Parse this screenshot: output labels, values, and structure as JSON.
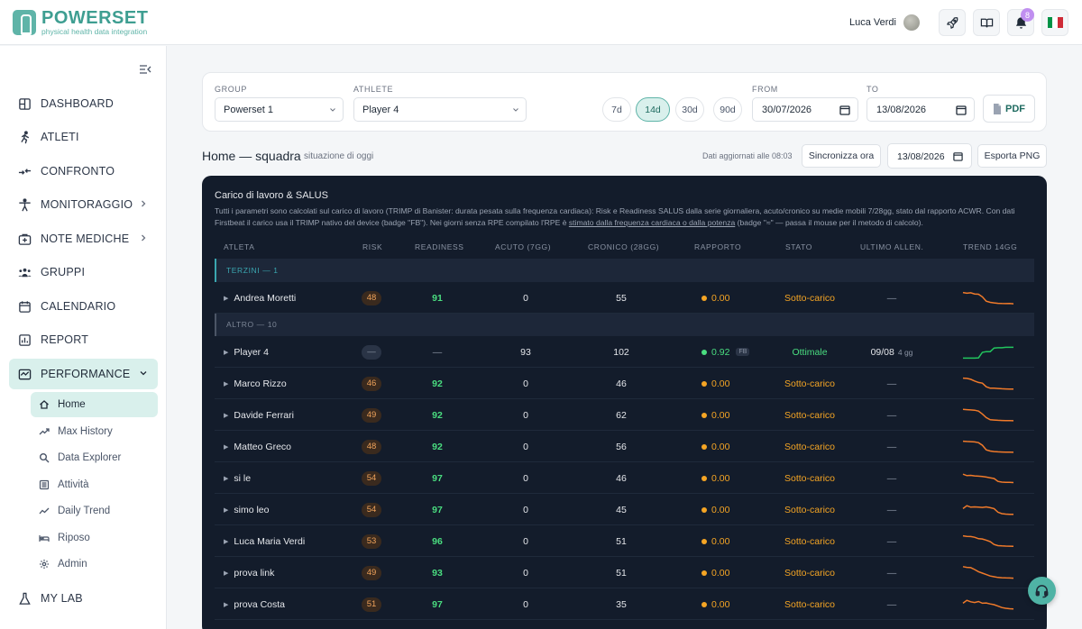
{
  "brand": {
    "name": "POWERSET",
    "tagline": "physical health data integration"
  },
  "header": {
    "user_name": "Luca Verdi",
    "notifications": "8"
  },
  "sidebar": {
    "items": [
      {
        "label": "DASHBOARD"
      },
      {
        "label": "ATLETI"
      },
      {
        "label": "CONFRONTO"
      },
      {
        "label": "MONITORAGGIO"
      },
      {
        "label": "NOTE MEDICHE"
      },
      {
        "label": "GRUPPI"
      },
      {
        "label": "CALENDARIO"
      },
      {
        "label": "REPORT"
      },
      {
        "label": "PERFORMANCE"
      },
      {
        "label": "MY LAB"
      }
    ],
    "sub_items": [
      {
        "label": "Home"
      },
      {
        "label": "Max History"
      },
      {
        "label": "Data Explorer"
      },
      {
        "label": "Attività"
      },
      {
        "label": "Daily Trend"
      },
      {
        "label": "Riposo"
      },
      {
        "label": "Admin"
      }
    ]
  },
  "filters": {
    "group_label": "GROUP",
    "group_value": "Powerset 1",
    "athlete_label": "ATHLETE",
    "athlete_value": "Player 4",
    "ranges": [
      "7d",
      "14d",
      "30d",
      "90d"
    ],
    "active_range": "14d",
    "from_label": "FROM",
    "from_value": "30/07/2026",
    "to_label": "TO",
    "to_value": "13/08/2026",
    "pdf_label": "PDF"
  },
  "title_row": {
    "title": "Home — squadra",
    "subtitle": "situazione di oggi",
    "updated": "Dati aggiornati alle 08:03",
    "sync_label": "Sincronizza ora",
    "date_value": "13/08/2026",
    "export_label": "Esporta PNG"
  },
  "panel": {
    "title": "Carico di lavoro & SALUS",
    "desc_1": "Tutti i parametri sono calcolati sul carico di lavoro (TRIMP di Banister: durata pesata sulla frequenza cardiaca): Risk e Readiness SALUS dalla serie giornaliera, acuto/cronico su medie mobili 7/28gg, stato dal rapporto ACWR.",
    "desc_2": "Con dati Firstbeat il carico usa il TRIMP nativo del device (badge \"FB\"). Nei giorni senza RPE compilato l'RPE è ",
    "desc_link": "stimato dalla frequenza cardiaca o dalla potenza",
    "desc_3": " (badge \"≈\" — passa il mouse per il metodo di calcolo).",
    "columns": [
      "ATLETA",
      "RISK",
      "READINESS",
      "ACUTO (7GG)",
      "CRONICO (28GG)",
      "RAPPORTO",
      "STATO",
      "ULTIMO ALLEN.",
      "TREND 14GG"
    ],
    "groups": [
      {
        "label": "TERZINI — 1"
      },
      {
        "label": "ALTRO — 10"
      }
    ],
    "rows": [
      {
        "name": "Andrea Moretti",
        "risk": "48",
        "readiness": "91",
        "acute": "0",
        "chronic": "55",
        "ratio": "0.00",
        "status": "Sotto-carico",
        "last": "—",
        "trend": [
          0.9,
          0.85,
          0.88,
          0.8,
          0.78,
          0.6,
          0.3,
          0.22,
          0.18,
          0.15,
          0.14,
          0.13,
          0.14,
          0.12
        ]
      },
      {
        "name": "Player 4",
        "risk": "—",
        "readiness": "—",
        "acute": "93",
        "chronic": "102",
        "ratio": "0.92",
        "ratio_badge": "FB",
        "status": "Ottimale",
        "last": "09/08",
        "last_ago": "4 gg",
        "trend": [
          0.1,
          0.1,
          0.1,
          0.1,
          0.12,
          0.5,
          0.55,
          0.55,
          0.8,
          0.82,
          0.82,
          0.85,
          0.85,
          0.85
        ]
      },
      {
        "name": "Marco Rizzo",
        "risk": "46",
        "readiness": "92",
        "acute": "0",
        "chronic": "46",
        "ratio": "0.00",
        "status": "Sotto-carico",
        "last": "—",
        "trend": [
          0.9,
          0.88,
          0.82,
          0.7,
          0.6,
          0.55,
          0.3,
          0.2,
          0.2,
          0.18,
          0.16,
          0.15,
          0.14,
          0.14
        ]
      },
      {
        "name": "Davide Ferrari",
        "risk": "49",
        "readiness": "92",
        "acute": "0",
        "chronic": "62",
        "ratio": "0.00",
        "status": "Sotto-carico",
        "last": "—",
        "trend": [
          0.92,
          0.9,
          0.88,
          0.86,
          0.8,
          0.6,
          0.35,
          0.2,
          0.18,
          0.16,
          0.15,
          0.14,
          0.14,
          0.13
        ]
      },
      {
        "name": "Matteo Greco",
        "risk": "48",
        "readiness": "92",
        "acute": "0",
        "chronic": "56",
        "ratio": "0.00",
        "status": "Sotto-carico",
        "last": "—",
        "trend": [
          0.9,
          0.88,
          0.87,
          0.85,
          0.8,
          0.62,
          0.3,
          0.22,
          0.18,
          0.16,
          0.15,
          0.14,
          0.14,
          0.13
        ]
      },
      {
        "name": "si le",
        "risk": "54",
        "readiness": "97",
        "acute": "0",
        "chronic": "46",
        "ratio": "0.00",
        "status": "Sotto-carico",
        "last": "—",
        "trend": [
          0.8,
          0.7,
          0.72,
          0.68,
          0.66,
          0.64,
          0.6,
          0.55,
          0.5,
          0.3,
          0.25,
          0.24,
          0.23,
          0.22
        ]
      },
      {
        "name": "simo leo",
        "risk": "54",
        "readiness": "97",
        "acute": "0",
        "chronic": "45",
        "ratio": "0.00",
        "status": "Sotto-carico",
        "last": "—",
        "trend": [
          0.6,
          0.8,
          0.7,
          0.72,
          0.7,
          0.68,
          0.72,
          0.66,
          0.6,
          0.35,
          0.25,
          0.22,
          0.2,
          0.2
        ]
      },
      {
        "name": "Luca Maria Verdi",
        "risk": "53",
        "readiness": "96",
        "acute": "0",
        "chronic": "51",
        "ratio": "0.00",
        "status": "Sotto-carico",
        "last": "—",
        "trend": [
          0.9,
          0.86,
          0.85,
          0.8,
          0.7,
          0.68,
          0.6,
          0.5,
          0.3,
          0.22,
          0.2,
          0.19,
          0.18,
          0.17
        ]
      },
      {
        "name": "prova link",
        "risk": "49",
        "readiness": "93",
        "acute": "0",
        "chronic": "51",
        "ratio": "0.00",
        "status": "Sotto-carico",
        "last": "—",
        "trend": [
          0.95,
          0.9,
          0.88,
          0.75,
          0.6,
          0.5,
          0.4,
          0.3,
          0.25,
          0.2,
          0.18,
          0.17,
          0.16,
          0.15
        ]
      },
      {
        "name": "prova Costa",
        "risk": "51",
        "readiness": "97",
        "acute": "0",
        "chronic": "35",
        "ratio": "0.00",
        "status": "Sotto-carico",
        "last": "—",
        "trend": [
          0.6,
          0.8,
          0.7,
          0.65,
          0.72,
          0.6,
          0.62,
          0.55,
          0.5,
          0.4,
          0.3,
          0.25,
          0.22,
          0.2
        ]
      }
    ]
  },
  "colors": {
    "accent": "#5fb4a8",
    "panel_bg": "#131c2b",
    "warn": "#f5a524",
    "ok": "#4ade80",
    "spark_warn": "#f07a2a",
    "spark_ok": "#22c55e"
  }
}
